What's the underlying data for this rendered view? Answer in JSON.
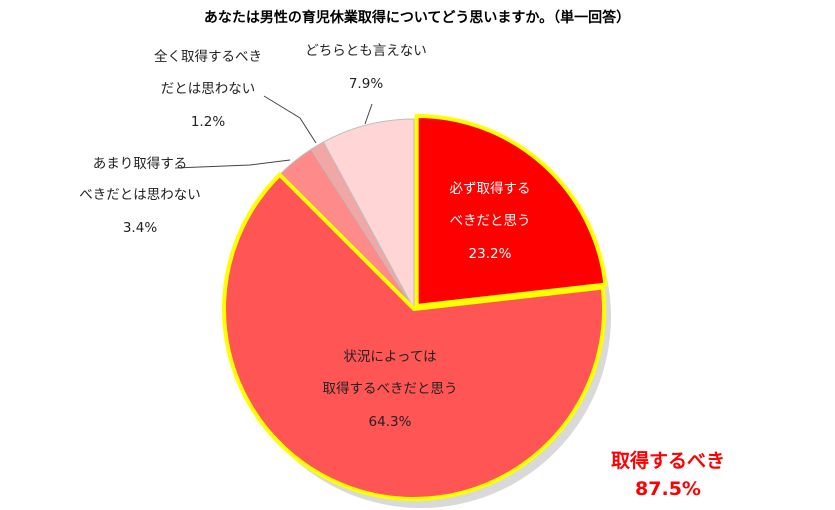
{
  "chart_data": {
    "type": "pie",
    "title": "あなたは男性の育児休業取得についてどう思いますか。（単一回答）",
    "slices": [
      {
        "label_lines": [
          "必ず取得する",
          "べきだと思う"
        ],
        "value": 23.2,
        "display": "23.2%",
        "color": "#ff0000"
      },
      {
        "label_lines": [
          "状況によっては",
          "取得するべきだと思う"
        ],
        "value": 64.3,
        "display": "64.3%",
        "color": "#ff5555"
      },
      {
        "label_lines": [
          "あまり取得する",
          "べきだとは思わない"
        ],
        "value": 3.4,
        "display": "3.4%",
        "color": "#ff8a8a"
      },
      {
        "label_lines": [
          "全く取得するべき",
          "だとは思わない"
        ],
        "value": 1.2,
        "display": "1.2%",
        "color": "#f2a6a6"
      },
      {
        "label_lines": [
          "どちらとも言えない"
        ],
        "value": 7.9,
        "display": "7.9%",
        "color": "#ffd5d5"
      }
    ],
    "total_annotation": {
      "line1": "取得するべき",
      "line2": "87.5%"
    },
    "highlight_color": "#ffff00"
  }
}
